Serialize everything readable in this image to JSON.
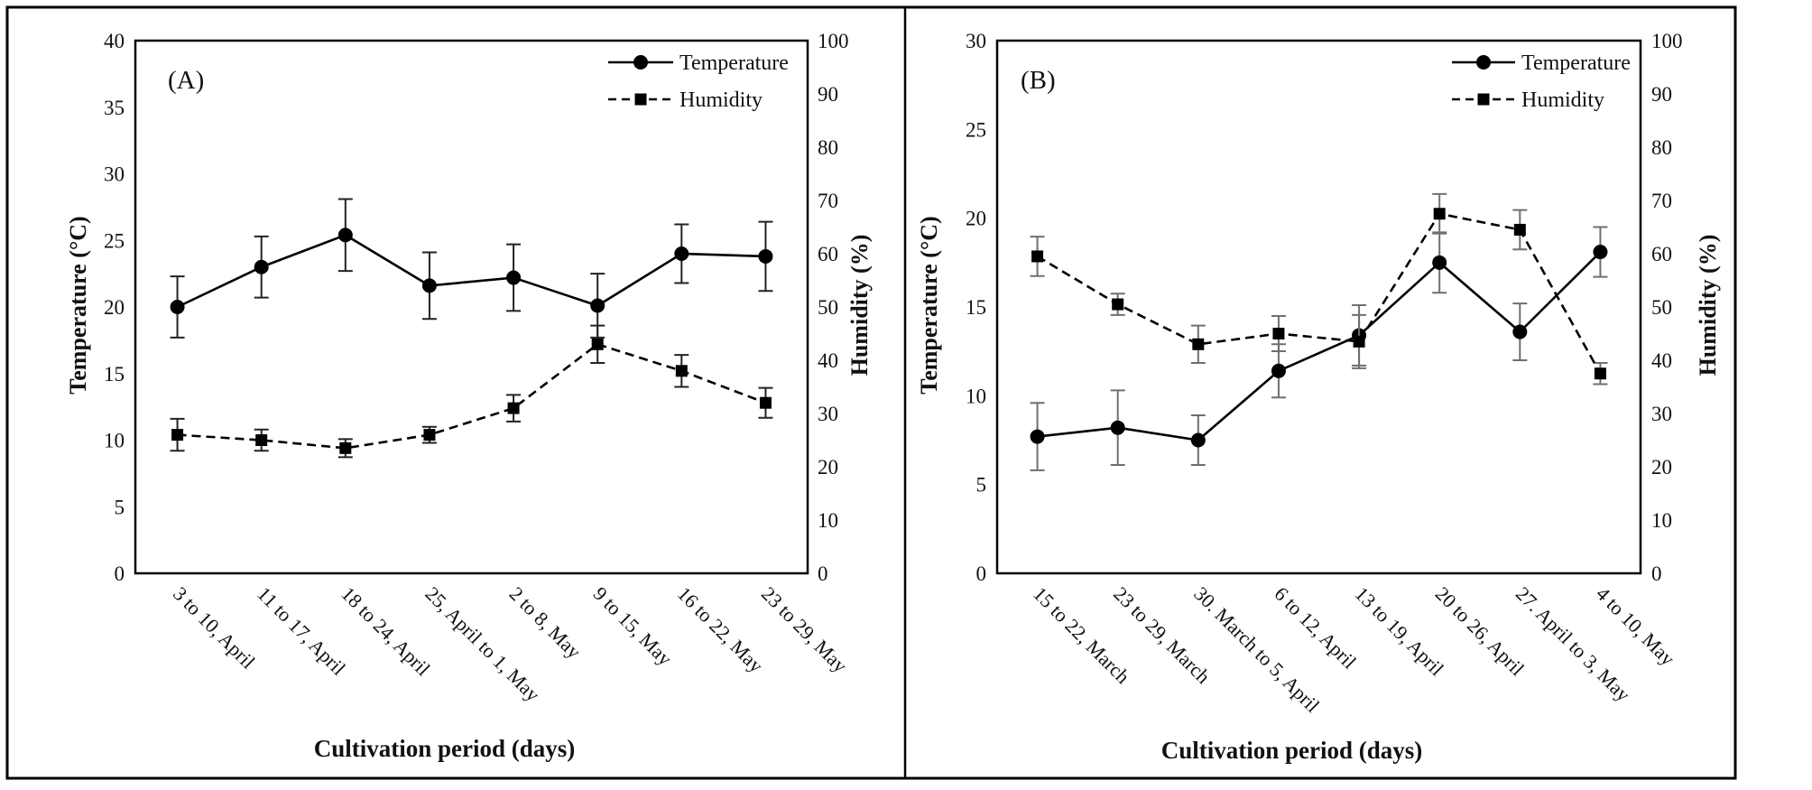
{
  "page": {
    "background": "#ffffff",
    "frame_color": "#000000",
    "series_color": "#000000",
    "error_bar_color_a": "#222222",
    "error_bar_color_b": "#6f6f6f"
  },
  "chart_data": [
    {
      "type": "line",
      "panel_label": "(A)",
      "xlabel": "Cultivation  period (days)",
      "left_ylabel": "Temperature (°C)",
      "right_ylabel": "Humidity (%)",
      "left_ylim": [
        0,
        40
      ],
      "left_ytick_step": 5,
      "right_ylim": [
        0,
        100
      ],
      "right_ytick_step": 10,
      "grid": false,
      "legend_position": "top-right-inside",
      "legend": [
        {
          "label": "Temperature",
          "marker": "circle",
          "line_style": "solid"
        },
        {
          "label": "Humidity",
          "marker": "square",
          "line_style": "dashed"
        }
      ],
      "categories": [
        "3 to 10, April",
        "11 to 17, April",
        "18 to 24, April",
        "25, April to 1, May",
        "2 to 8, May",
        "9 to 15, May",
        "16 to 22, May",
        "23 to 29, May"
      ],
      "series": [
        {
          "name": "Temperature",
          "axis": "left",
          "marker": "circle",
          "line_style": "solid",
          "color": "#000000",
          "values": [
            20.0,
            23.0,
            25.4,
            21.6,
            22.2,
            20.1,
            24.0,
            23.8
          ],
          "errors": [
            2.3,
            2.3,
            2.7,
            2.5,
            2.5,
            2.4,
            2.2,
            2.6
          ]
        },
        {
          "name": "Humidity",
          "axis": "right",
          "marker": "square",
          "line_style": "dashed",
          "color": "#000000",
          "values": [
            26,
            25,
            23.5,
            26,
            31,
            43,
            38,
            32
          ],
          "errors": [
            3,
            2,
            1.7,
            1.5,
            2.5,
            3.5,
            3,
            2.8
          ]
        }
      ]
    },
    {
      "type": "line",
      "panel_label": "(B)",
      "xlabel": "Cultivation  period (days)",
      "left_ylabel": "Temperature (°C)",
      "right_ylabel": "Humidity (%)",
      "left_ylim": [
        0,
        30
      ],
      "left_ytick_step": 5,
      "right_ylim": [
        0,
        100
      ],
      "right_ytick_step": 10,
      "grid": false,
      "legend_position": "top-right-inside",
      "legend": [
        {
          "label": "Temperature",
          "marker": "circle",
          "line_style": "solid"
        },
        {
          "label": "Humidity",
          "marker": "square",
          "line_style": "dashed"
        }
      ],
      "categories": [
        "15 to 22, March",
        "23 to 29, March",
        "30. March to 5, April",
        "6 to 12, April",
        "13 to 19, April",
        "20 to 26, April",
        "27. April to 3, May",
        "4 to 10, May"
      ],
      "series": [
        {
          "name": "Temperature",
          "axis": "left",
          "marker": "circle",
          "line_style": "solid",
          "color": "#000000",
          "values": [
            7.7,
            8.2,
            7.5,
            11.4,
            13.4,
            17.5,
            13.6,
            18.1
          ],
          "errors": [
            1.9,
            2.1,
            1.4,
            1.5,
            1.7,
            1.7,
            1.6,
            1.4
          ]
        },
        {
          "name": "Humidity",
          "axis": "right",
          "marker": "square",
          "line_style": "dashed",
          "color": "#000000",
          "values": [
            59.5,
            50.5,
            43,
            45,
            43.5,
            67.5,
            64.5,
            37.5
          ],
          "errors": [
            3.7,
            2,
            3.5,
            3.3,
            5,
            3.7,
            3.7,
            2
          ]
        }
      ]
    }
  ]
}
